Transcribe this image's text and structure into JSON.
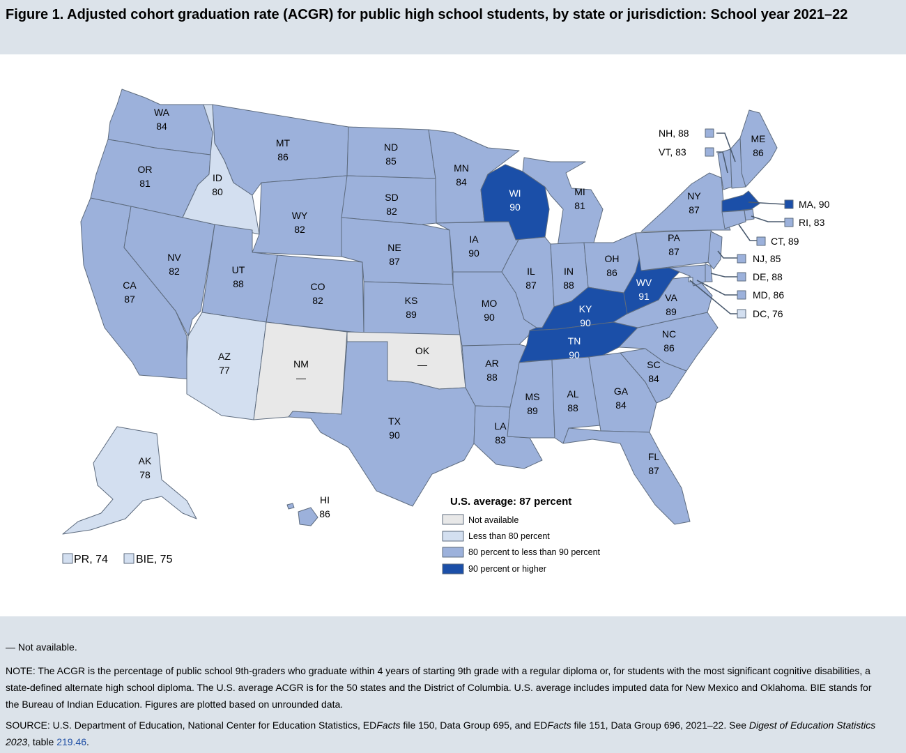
{
  "title": "Figure 1. Adjusted cohort graduation rate (ACGR) for public high school students, by state or jurisdiction: School year 2021–22",
  "colors": {
    "not_available": "#e8e8e8",
    "lt80": "#d3dff0",
    "80to90": "#9cb1db",
    "ge90": "#1b4fa8",
    "border": "#5d6b7e"
  },
  "legend": {
    "title": "U.S. average: 87 percent",
    "items": [
      {
        "label": "Not available",
        "color": "#e8e8e8"
      },
      {
        "label": "Less than 80 percent",
        "color": "#d3dff0"
      },
      {
        "label": "80 percent to less than 90 percent",
        "color": "#9cb1db"
      },
      {
        "label": "90 percent or higher",
        "color": "#1b4fa8"
      }
    ]
  },
  "states": [
    {
      "abbr": "WA",
      "value": "84"
    },
    {
      "abbr": "OR",
      "value": "81"
    },
    {
      "abbr": "CA",
      "value": "87"
    },
    {
      "abbr": "ID",
      "value": "80"
    },
    {
      "abbr": "NV",
      "value": "82"
    },
    {
      "abbr": "MT",
      "value": "86"
    },
    {
      "abbr": "WY",
      "value": "82"
    },
    {
      "abbr": "UT",
      "value": "88"
    },
    {
      "abbr": "AZ",
      "value": "77"
    },
    {
      "abbr": "CO",
      "value": "82"
    },
    {
      "abbr": "NM",
      "value": "—"
    },
    {
      "abbr": "ND",
      "value": "85"
    },
    {
      "abbr": "SD",
      "value": "82"
    },
    {
      "abbr": "NE",
      "value": "87"
    },
    {
      "abbr": "KS",
      "value": "89"
    },
    {
      "abbr": "OK",
      "value": "—"
    },
    {
      "abbr": "TX",
      "value": "90"
    },
    {
      "abbr": "MN",
      "value": "84"
    },
    {
      "abbr": "IA",
      "value": "90"
    },
    {
      "abbr": "MO",
      "value": "90"
    },
    {
      "abbr": "AR",
      "value": "88"
    },
    {
      "abbr": "LA",
      "value": "83"
    },
    {
      "abbr": "WI",
      "value": "90"
    },
    {
      "abbr": "IL",
      "value": "87"
    },
    {
      "abbr": "MI",
      "value": "81"
    },
    {
      "abbr": "IN",
      "value": "88"
    },
    {
      "abbr": "OH",
      "value": "86"
    },
    {
      "abbr": "KY",
      "value": "90"
    },
    {
      "abbr": "TN",
      "value": "90"
    },
    {
      "abbr": "MS",
      "value": "89"
    },
    {
      "abbr": "AL",
      "value": "88"
    },
    {
      "abbr": "GA",
      "value": "84"
    },
    {
      "abbr": "FL",
      "value": "87"
    },
    {
      "abbr": "SC",
      "value": "84"
    },
    {
      "abbr": "NC",
      "value": "86"
    },
    {
      "abbr": "VA",
      "value": "89"
    },
    {
      "abbr": "WV",
      "value": "91"
    },
    {
      "abbr": "PA",
      "value": "87"
    },
    {
      "abbr": "NY",
      "value": "87"
    },
    {
      "abbr": "ME",
      "value": "86"
    },
    {
      "abbr": "AK",
      "value": "78"
    },
    {
      "abbr": "HI",
      "value": "86"
    }
  ],
  "callouts": [
    {
      "label": "NH, 88"
    },
    {
      "label": "VT, 83"
    },
    {
      "label": "MA, 90"
    },
    {
      "label": "RI, 83"
    },
    {
      "label": "CT, 89"
    },
    {
      "label": "NJ, 85"
    },
    {
      "label": "DE, 88"
    },
    {
      "label": "MD, 86"
    },
    {
      "label": "DC, 76"
    }
  ],
  "territories": [
    {
      "label": "PR, 74"
    },
    {
      "label": "BIE, 75"
    }
  ],
  "footer": {
    "not_available_note": "— Not available.",
    "note": "NOTE: The ACGR is the percentage of public school 9th-graders who graduate within 4 years of starting 9th grade with a regular diploma or, for students with the most significant cognitive disabilities, a state-defined alternate high school diploma. The U.S. average ACGR is for the 50 states and the District of Columbia. U.S. average includes imputed data for New Mexico and Oklahoma. BIE stands for the Bureau of Indian Education. Figures are plotted based on unrounded data.",
    "source_part1": "SOURCE: U.S. Department of Education, National Center for Education Statistics, ED",
    "source_facts1": "Facts",
    "source_part2": " file 150, Data Group 695, and ED",
    "source_facts2": "Facts",
    "source_part3": " file 151, Data Group 696, 2021–22. See ",
    "source_digest": "Digest of Education Statistics 2023",
    "source_part4": ", table ",
    "source_link": "219.46",
    "source_end": "."
  }
}
